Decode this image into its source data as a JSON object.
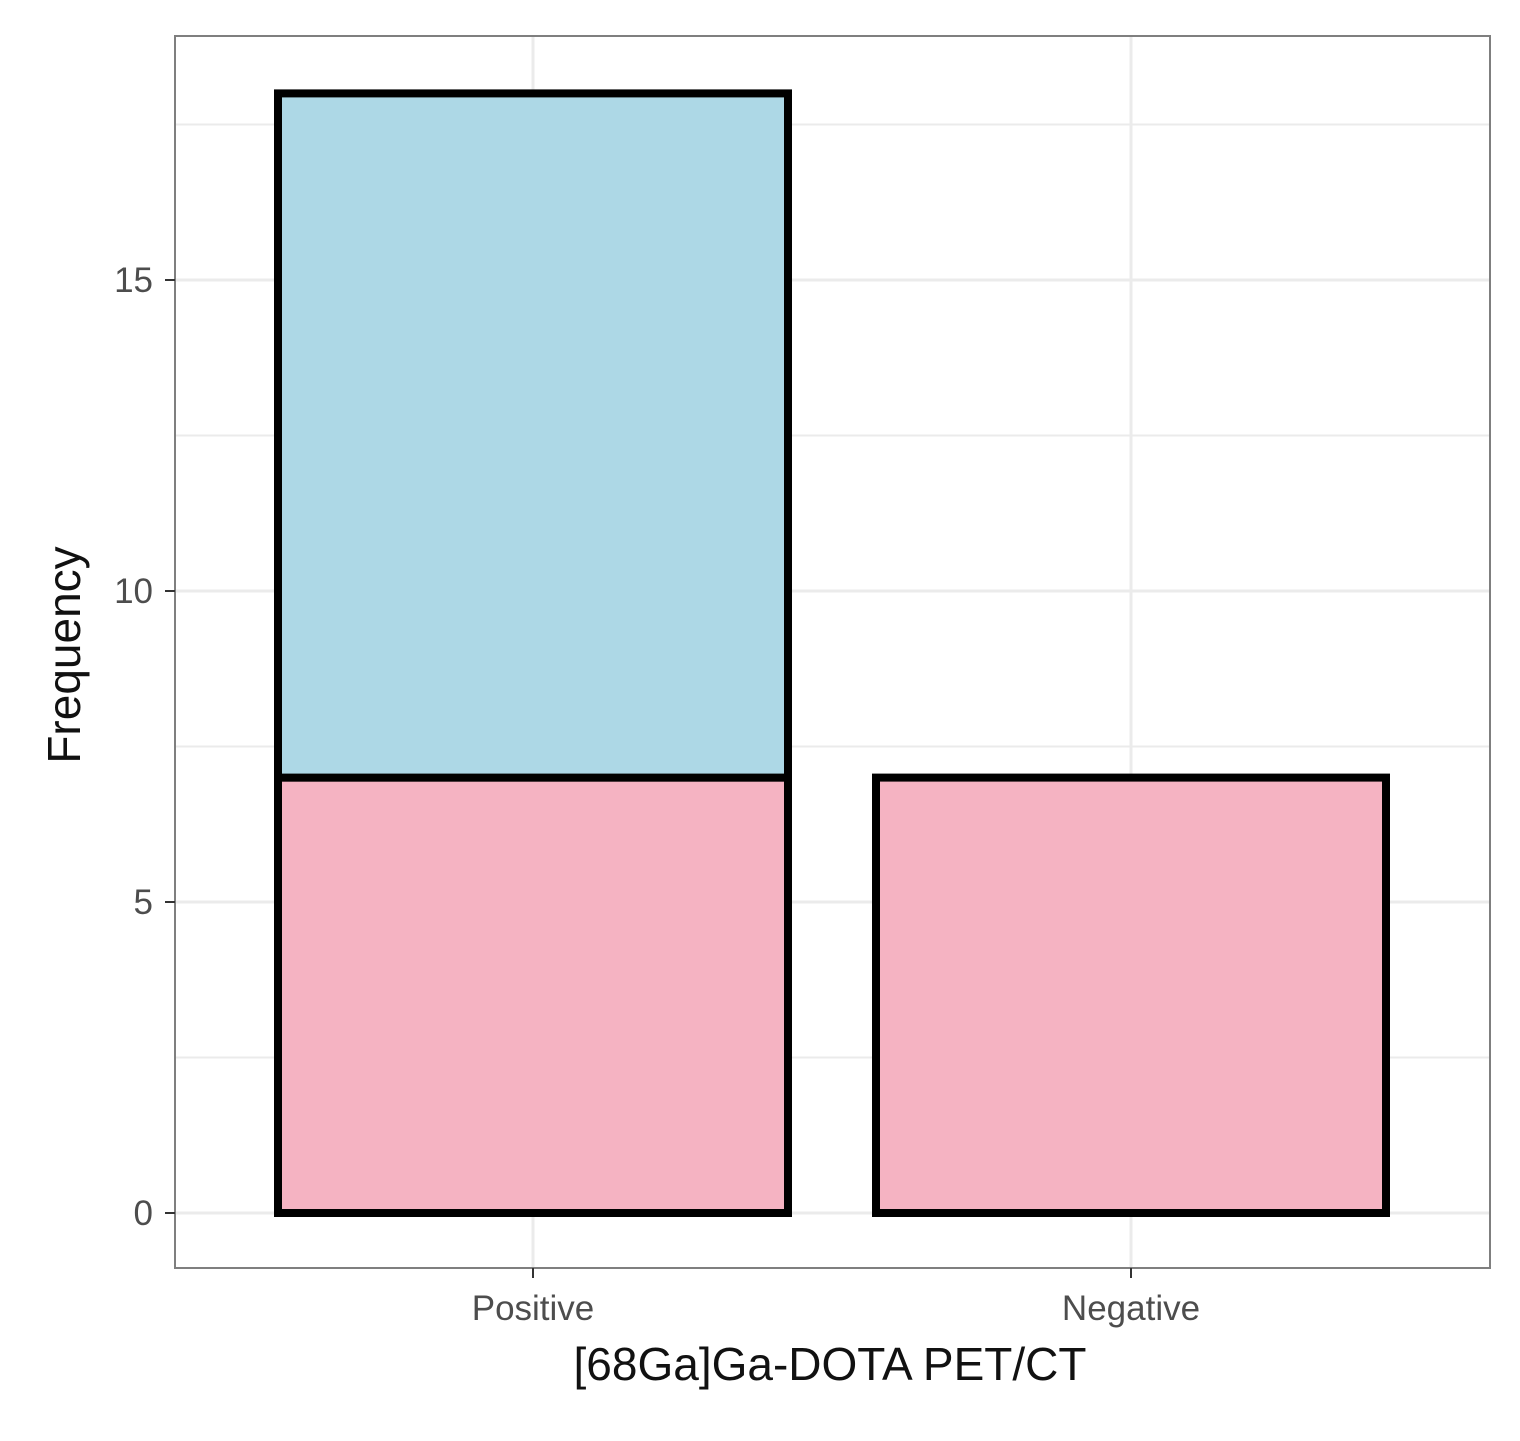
{
  "chart_data": {
    "type": "bar",
    "stacked": true,
    "categories": [
      "Positive",
      "Negative"
    ],
    "series": [
      {
        "values": [
          7,
          7
        ],
        "color": "#f5b3c2"
      },
      {
        "values": [
          11,
          0
        ],
        "color": "#add8e6"
      }
    ],
    "xlabel": "[68Ga]Ga-DOTA PET/CT",
    "ylabel": "Frequency",
    "ylim": [
      0,
      18
    ],
    "yticks": [
      0,
      5,
      10,
      15
    ],
    "grid": true,
    "legend": "none",
    "bar_outline_color": "#000000",
    "panel_border_color": "#7f7f7f",
    "grid_color": "#ebebeb"
  }
}
